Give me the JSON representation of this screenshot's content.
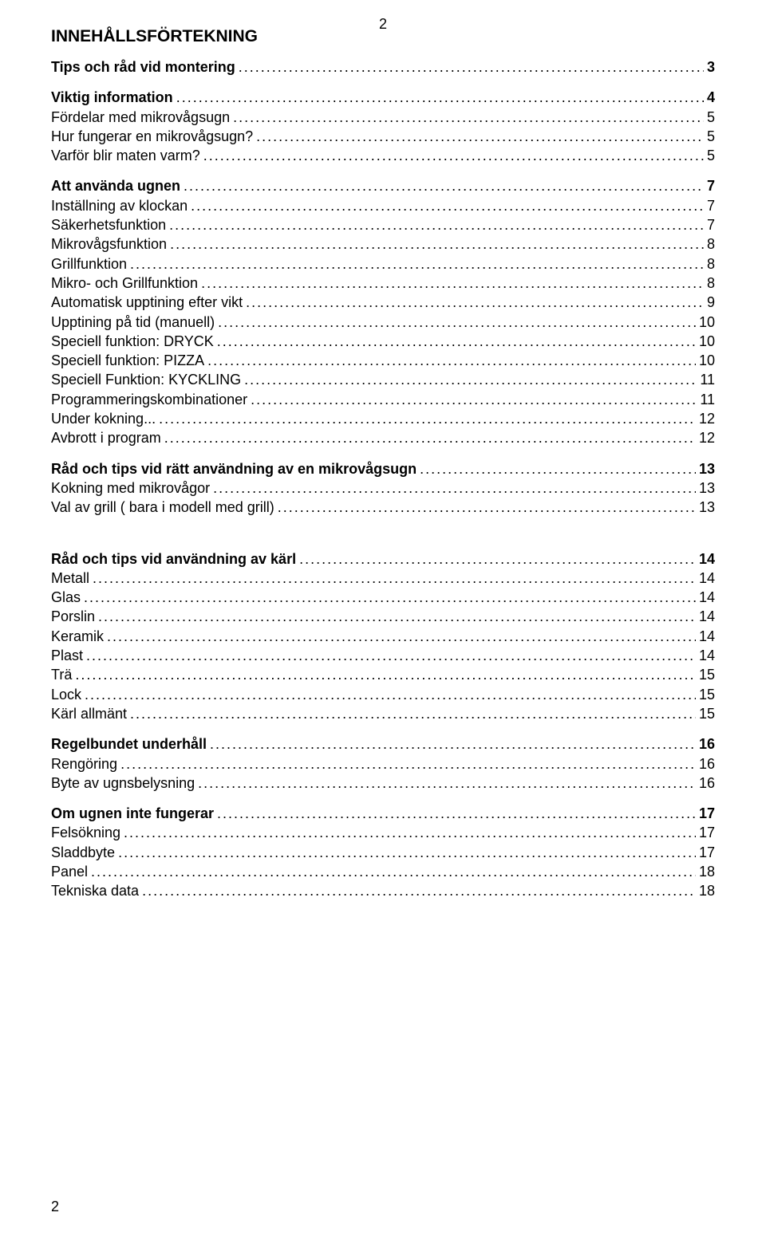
{
  "page_number_top": "2",
  "page_number_bottom": "2",
  "title": "INNEHÅLLSFÖRTEKNING",
  "leader_fill": "........................................................................................................................................................................................................................................................................",
  "sections": [
    {
      "heading": {
        "label": "Tips och råd vid montering",
        "page": "3"
      },
      "entries": []
    },
    {
      "heading": {
        "label": "Viktig information",
        "page": "4"
      },
      "entries": [
        {
          "label": "Fördelar med mikrovågsugn",
          "page": "5"
        },
        {
          "label": "Hur fungerar en mikrovågsugn?",
          "page": "5"
        },
        {
          "label": "Varför blir maten varm?",
          "page": "5"
        }
      ]
    },
    {
      "heading": {
        "label": "Att använda ugnen",
        "page": "7"
      },
      "entries": [
        {
          "label": "Inställning av klockan",
          "page": "7"
        },
        {
          "label": "Säkerhetsfunktion",
          "page": "7"
        },
        {
          "label": "Mikrovågsfunktion",
          "page": "8"
        },
        {
          "label": "Grillfunktion",
          "page": "8"
        },
        {
          "label": "Mikro- och  Grillfunktion",
          "page": "8"
        },
        {
          "label": "Automatisk upptining efter vikt",
          "page": "9"
        },
        {
          "label": "Upptining på tid (manuell)",
          "page": "10"
        },
        {
          "label": "Speciell funktion: DRYCK",
          "page": "10"
        },
        {
          "label": "Speciell funktion: PIZZA",
          "page": "10"
        },
        {
          "label": "Speciell Funktion: KYCKLING",
          "page": "11"
        },
        {
          "label": "Programmeringskombinationer",
          "page": "11"
        },
        {
          "label": "Under kokning...",
          "page": "12"
        },
        {
          "label": "Avbrott i program",
          "page": "12"
        }
      ]
    },
    {
      "heading": {
        "label": "Råd och tips vid rätt användning av en mikrovågsugn",
        "page": "13"
      },
      "entries": [
        {
          "label": "Kokning med mikrovågor",
          "page": "13"
        },
        {
          "label": "Val av grill ( bara i modell med grill)",
          "page": "13"
        }
      ]
    },
    {
      "heading": {
        "label": "Råd och tips vid användning av kärl",
        "page": "14"
      },
      "entries": [
        {
          "label": "Metall",
          "page": "14"
        },
        {
          "label": "Glas",
          "page": "14"
        },
        {
          "label": "Porslin",
          "page": "14"
        },
        {
          "label": "Keramik",
          "page": "14"
        },
        {
          "label": "Plast",
          "page": "14"
        },
        {
          "label": "Trä",
          "page": "15"
        },
        {
          "label": "Lock",
          "page": "15"
        },
        {
          "label": "Kärl allmänt",
          "page": "15"
        }
      ],
      "gap_before": true
    },
    {
      "heading": {
        "label": "Regelbundet underhåll",
        "page": "16"
      },
      "entries": [
        {
          "label": "Rengöring",
          "page": "16"
        },
        {
          "label": "Byte av ugnsbelysning",
          "page": "16"
        }
      ]
    },
    {
      "heading": {
        "label": "Om ugnen inte fungerar",
        "page": "17"
      },
      "entries": [
        {
          "label": "Felsökning",
          "page": "17"
        },
        {
          "label": "Sladdbyte",
          "page": "17"
        },
        {
          "label": "Panel",
          "page": "18"
        },
        {
          "label": "Tekniska data",
          "page": "18"
        }
      ]
    }
  ]
}
